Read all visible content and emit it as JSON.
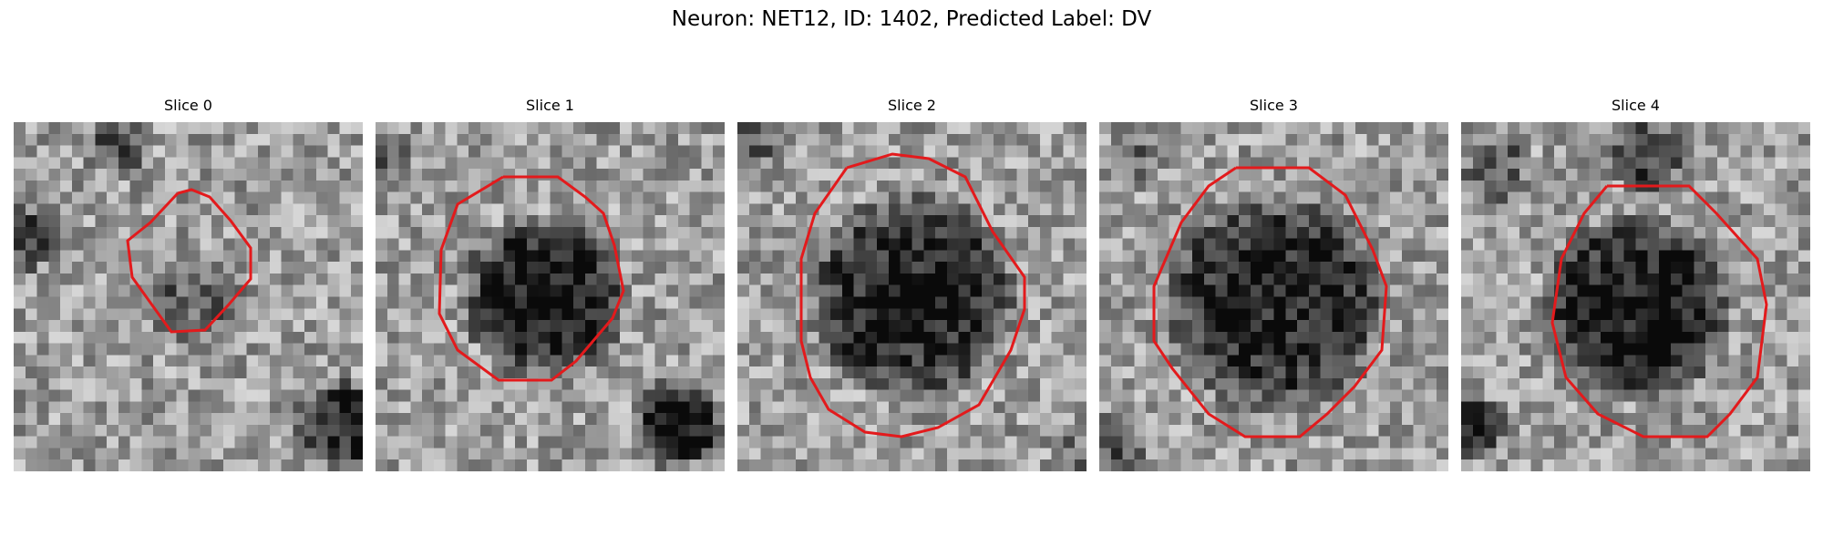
{
  "figure": {
    "title": "Neuron: NET12, ID: 1402, Predicted Label: DV"
  },
  "contour_color": "#e31a1c",
  "slices": [
    {
      "title": "Slice 0",
      "contour_size": "small"
    },
    {
      "title": "Slice 1",
      "contour_size": "medium"
    },
    {
      "title": "Slice 2",
      "contour_size": "large"
    },
    {
      "title": "Slice 3",
      "contour_size": "large"
    },
    {
      "title": "Slice 4",
      "contour_size": "large"
    }
  ]
}
